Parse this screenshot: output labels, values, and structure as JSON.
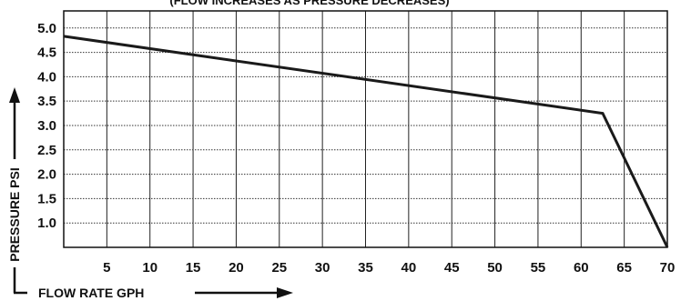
{
  "chart_data": {
    "type": "line",
    "title": "(FLOW INCREASES AS PRESSURE DECREASES)",
    "xlabel": "FLOW RATE GPH",
    "ylabel": "PRESSURE PSI",
    "xlim": [
      0,
      70
    ],
    "ylim": [
      0.5,
      5.35
    ],
    "x_ticks": [
      "5",
      "10",
      "15",
      "20",
      "25",
      "30",
      "35",
      "40",
      "45",
      "50",
      "55",
      "60",
      "65",
      "70"
    ],
    "y_ticks": [
      "1.0",
      "1.5",
      "2.0",
      "2.5",
      "3.0",
      "3.5",
      "4.0",
      "4.5",
      "5.0"
    ],
    "grid": true,
    "series": [
      {
        "x": [
          0,
          62.5,
          70
        ],
        "y": [
          4.83,
          3.25,
          0.5
        ]
      }
    ]
  }
}
